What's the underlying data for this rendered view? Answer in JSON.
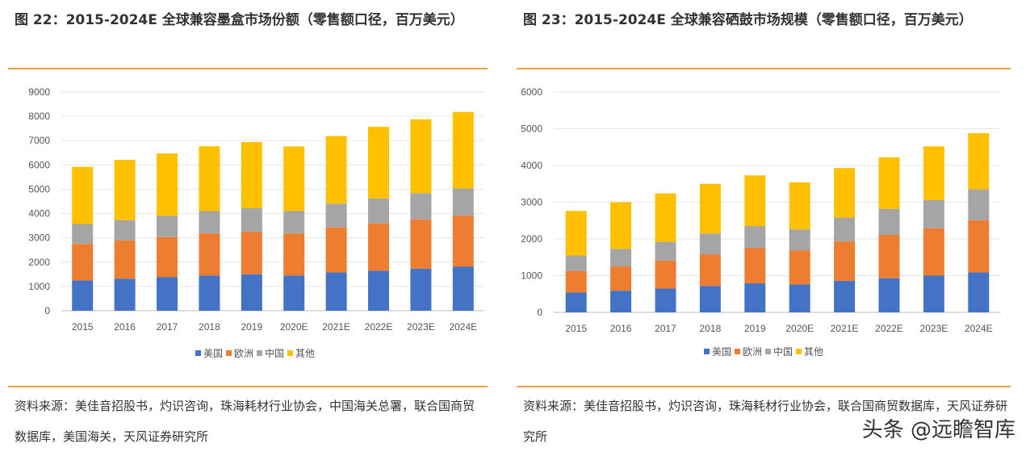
{
  "figures": [
    {
      "title": "图 22：2015-2024E 全球兼容墨盒市场份额（零售额口径，百万美元）",
      "source": "资料来源：美佳音招股书，灼识咨询，珠海耗材行业协会，中国海关总署，联合国商贸数据库，美国海关，天风证券研究所"
    },
    {
      "title": "图 23：2015-2024E 全球兼容硒鼓市场规模（零售额口径，百万美元）",
      "source": "资料来源：美佳音招股书，灼识咨询，珠海耗材行业协会，联合国商贸数据库，天风证券研究所"
    }
  ],
  "watermark": "头条 @远瞻智库",
  "colors": {
    "美国": "#4472c4",
    "欧洲": "#ed7d31",
    "中国": "#a5a5a5",
    "其他": "#ffc000",
    "rule": "#e8a040"
  },
  "chart_data": [
    {
      "type": "bar",
      "stacked": true,
      "title": "图 22：2015-2024E 全球兼容墨盒市场份额（零售额口径，百万美元）",
      "categories": [
        "2015",
        "2016",
        "2017",
        "2018",
        "2019",
        "2020E",
        "2021E",
        "2022E",
        "2023E",
        "2024E"
      ],
      "series": [
        {
          "name": "美国",
          "values": [
            1250,
            1320,
            1380,
            1450,
            1500,
            1450,
            1580,
            1650,
            1730,
            1810
          ]
        },
        {
          "name": "欧洲",
          "values": [
            1500,
            1580,
            1650,
            1730,
            1760,
            1730,
            1850,
            1950,
            2030,
            2110
          ]
        },
        {
          "name": "中国",
          "values": [
            820,
            830,
            880,
            920,
            960,
            920,
            980,
            1020,
            1080,
            1110
          ]
        },
        {
          "name": "其他",
          "values": [
            2350,
            2480,
            2560,
            2670,
            2720,
            2660,
            2780,
            2950,
            3040,
            3150
          ]
        }
      ],
      "ylim": [
        0,
        9000
      ],
      "yticks": [
        0,
        1000,
        2000,
        3000,
        4000,
        5000,
        6000,
        7000,
        8000,
        9000
      ],
      "grid": true,
      "legend": "bottom"
    },
    {
      "type": "bar",
      "stacked": true,
      "title": "图 23：2015-2024E 全球兼容硒鼓市场规模（零售额口径，百万美元）",
      "categories": [
        "2015",
        "2016",
        "2017",
        "2018",
        "2019",
        "2020E",
        "2021E",
        "2022E",
        "2023E",
        "2024E"
      ],
      "series": [
        {
          "name": "美国",
          "values": [
            540,
            590,
            650,
            720,
            790,
            760,
            860,
            930,
            1000,
            1090
          ]
        },
        {
          "name": "欧洲",
          "values": [
            590,
            660,
            760,
            860,
            970,
            930,
            1070,
            1180,
            1290,
            1420
          ]
        },
        {
          "name": "中国",
          "values": [
            420,
            480,
            510,
            570,
            590,
            570,
            650,
            710,
            770,
            840
          ]
        },
        {
          "name": "其他",
          "values": [
            1210,
            1270,
            1320,
            1350,
            1380,
            1280,
            1350,
            1400,
            1460,
            1530
          ]
        }
      ],
      "ylim": [
        0,
        6000
      ],
      "yticks": [
        0,
        1000,
        2000,
        3000,
        4000,
        5000,
        6000
      ],
      "grid": true,
      "legend": "bottom"
    }
  ]
}
